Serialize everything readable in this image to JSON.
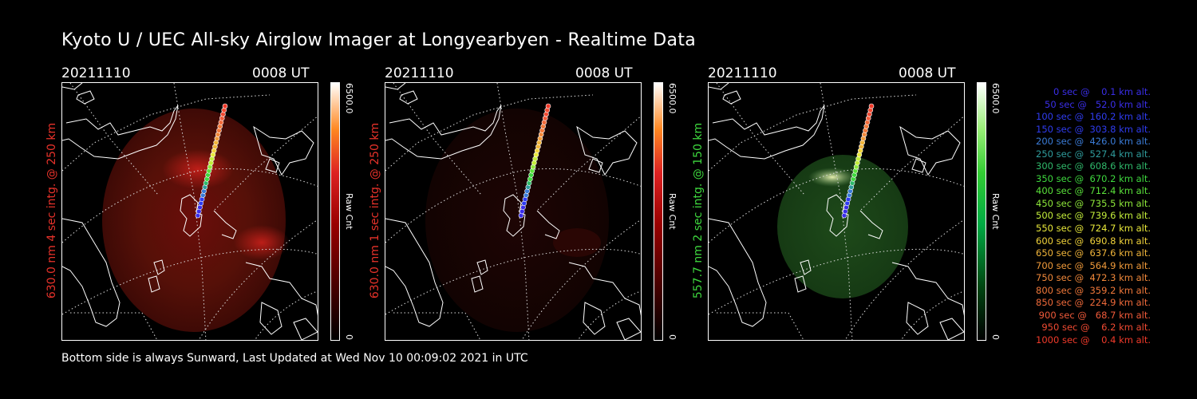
{
  "title": "Kyoto U / UEC All-sky Airglow Imager at Longyearbyen - Realtime Data",
  "footer": "Bottom side is always Sunward, Last Updated at Wed Nov 10 00:09:02 2021 in UTC",
  "panels": [
    {
      "date": "20211110",
      "time": "0008 UT",
      "ylabel": "630.0 nm 4 sec intg. @ 250 km",
      "ylabel_color": "#e8322a",
      "cbar_max": "6500.0",
      "cbar_min": "0",
      "cbar_unit": "Raw Cnt",
      "cmap": "red"
    },
    {
      "date": "20211110",
      "time": "0008 UT",
      "ylabel": "630.0 nm 1 sec intg. @ 250 km",
      "ylabel_color": "#e8322a",
      "cbar_max": "6500.0",
      "cbar_min": "0",
      "cbar_unit": "Raw Cnt",
      "cmap": "red"
    },
    {
      "date": "20211110",
      "time": "0008 UT",
      "ylabel": "557.7 nm 2 sec intg. @ 150 km",
      "ylabel_color": "#3ed83e",
      "cbar_max": "6500.0",
      "cbar_min": "0",
      "cbar_unit": "Raw Cnt",
      "cmap": "green"
    }
  ],
  "legend": [
    {
      "text": "   0 sec @    0.1 km alt.",
      "color": "#3a2ee8"
    },
    {
      "text": "  50 sec @   52.0 km alt.",
      "color": "#3a2ee8"
    },
    {
      "text": " 100 sec @  160.2 km alt.",
      "color": "#2f3cf0"
    },
    {
      "text": " 150 sec @  303.8 km alt.",
      "color": "#2f3cf0"
    },
    {
      "text": " 200 sec @  426.0 km alt.",
      "color": "#3a7bd6"
    },
    {
      "text": " 250 sec @  527.4 km alt.",
      "color": "#2f9c9c"
    },
    {
      "text": " 300 sec @  608.6 km alt.",
      "color": "#2fb86a"
    },
    {
      "text": " 350 sec @  670.2 km alt.",
      "color": "#3ed83e"
    },
    {
      "text": " 400 sec @  712.4 km alt.",
      "color": "#5ae03a"
    },
    {
      "text": " 450 sec @  735.5 km alt.",
      "color": "#8ee83a"
    },
    {
      "text": " 500 sec @  739.6 km alt.",
      "color": "#c2ec3a"
    },
    {
      "text": " 550 sec @  724.7 km alt.",
      "color": "#e8e83a"
    },
    {
      "text": " 600 sec @  690.8 km alt.",
      "color": "#f0d23a"
    },
    {
      "text": " 650 sec @  637.6 km alt.",
      "color": "#f0b43a"
    },
    {
      "text": " 700 sec @  564.9 km alt.",
      "color": "#f09a3a"
    },
    {
      "text": " 750 sec @  472.3 km alt.",
      "color": "#f0883a"
    },
    {
      "text": " 800 sec @  359.2 km alt.",
      "color": "#f0783a"
    },
    {
      "text": " 850 sec @  224.9 km alt.",
      "color": "#f06a3a"
    },
    {
      "text": " 900 sec @   68.7 km alt.",
      "color": "#f05a3a"
    },
    {
      "text": " 950 sec @    6.2 km alt.",
      "color": "#f04a32"
    },
    {
      "text": "1000 sec @    0.4 km alt.",
      "color": "#f03a2a"
    }
  ]
}
